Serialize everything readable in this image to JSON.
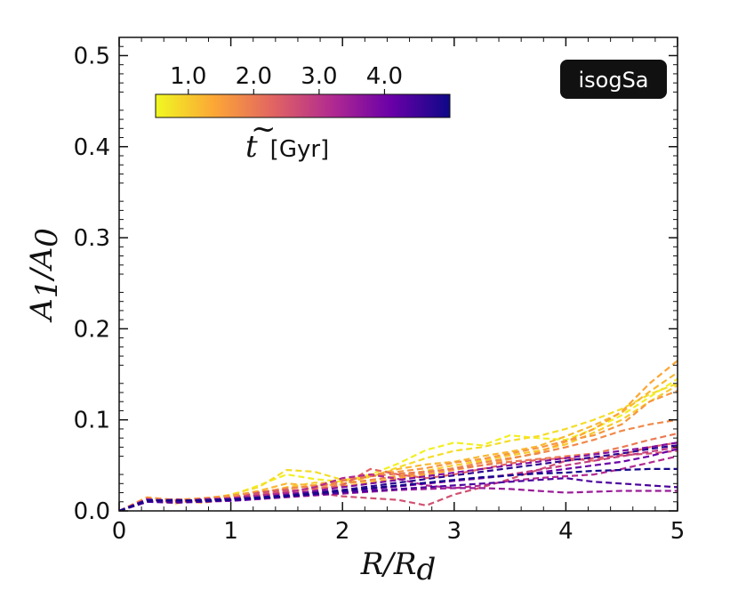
{
  "chart_data": {
    "type": "line",
    "line_style": "dashed",
    "badge": "isogSa",
    "xlabel": "R/R",
    "xlabel_sub": "d",
    "ylabel": "A",
    "ylabel_sub1": "1",
    "ylabel_sep": "/A",
    "ylabel_sub2": "0",
    "xlim": [
      0,
      5
    ],
    "ylim": [
      0,
      0.52
    ],
    "xticks": [
      0,
      1,
      2,
      3,
      4,
      5
    ],
    "xtick_labels": [
      "0",
      "1",
      "2",
      "3",
      "4",
      "5"
    ],
    "yticks": [
      0.0,
      0.1,
      0.2,
      0.3,
      0.4,
      0.5
    ],
    "ytick_labels": [
      "0.0",
      "0.1",
      "0.2",
      "0.3",
      "0.4",
      "0.5"
    ],
    "colorbar": {
      "label_sym": "t",
      "label_unit": "[Gyr]",
      "range": [
        0.5,
        5.0
      ],
      "ticks": [
        1.0,
        2.0,
        3.0,
        4.0
      ],
      "tick_labels": [
        "1.0",
        "2.0",
        "3.0",
        "4.0"
      ],
      "cmap_stops": [
        "#f0f921",
        "#fca636",
        "#e16462",
        "#b12a90",
        "#6a00a8",
        "#0d0887"
      ]
    },
    "x": [
      0,
      0.25,
      0.5,
      0.75,
      1,
      1.25,
      1.5,
      1.75,
      2,
      2.25,
      2.5,
      2.75,
      3,
      3.25,
      3.5,
      3.75,
      4,
      4.25,
      4.5,
      4.75,
      5
    ],
    "series": [
      {
        "t": 0.6,
        "values": [
          0.0,
          0.012,
          0.009,
          0.011,
          0.017,
          0.028,
          0.04,
          0.035,
          0.032,
          0.04,
          0.052,
          0.067,
          0.075,
          0.072,
          0.083,
          0.08,
          0.078,
          0.09,
          0.105,
          0.125,
          0.145
        ]
      },
      {
        "t": 0.8,
        "values": [
          0.0,
          0.014,
          0.01,
          0.012,
          0.018,
          0.026,
          0.045,
          0.043,
          0.034,
          0.037,
          0.048,
          0.058,
          0.066,
          0.07,
          0.077,
          0.082,
          0.09,
          0.1,
          0.112,
          0.128,
          0.14
        ]
      },
      {
        "t": 1.0,
        "values": [
          0.0,
          0.011,
          0.012,
          0.01,
          0.014,
          0.019,
          0.026,
          0.031,
          0.03,
          0.033,
          0.039,
          0.044,
          0.05,
          0.055,
          0.061,
          0.066,
          0.073,
          0.086,
          0.1,
          0.12,
          0.138
        ]
      },
      {
        "t": 1.2,
        "values": [
          0.0,
          0.013,
          0.008,
          0.013,
          0.016,
          0.022,
          0.03,
          0.028,
          0.029,
          0.038,
          0.046,
          0.051,
          0.054,
          0.06,
          0.065,
          0.071,
          0.082,
          0.094,
          0.108,
          0.131,
          0.152
        ]
      },
      {
        "t": 1.4,
        "values": [
          0.0,
          0.01,
          0.011,
          0.009,
          0.013,
          0.017,
          0.021,
          0.025,
          0.027,
          0.031,
          0.036,
          0.04,
          0.045,
          0.05,
          0.057,
          0.064,
          0.076,
          0.09,
          0.109,
          0.14,
          0.165
        ]
      },
      {
        "t": 1.6,
        "values": [
          0.0,
          0.015,
          0.012,
          0.014,
          0.017,
          0.021,
          0.024,
          0.028,
          0.035,
          0.04,
          0.043,
          0.047,
          0.053,
          0.057,
          0.063,
          0.069,
          0.077,
          0.083,
          0.095,
          0.12,
          0.132
        ]
      },
      {
        "t": 1.8,
        "values": [
          0.0,
          0.012,
          0.009,
          0.012,
          0.015,
          0.02,
          0.025,
          0.027,
          0.03,
          0.034,
          0.038,
          0.042,
          0.047,
          0.053,
          0.058,
          0.063,
          0.07,
          0.078,
          0.088,
          0.095,
          0.1
        ]
      },
      {
        "t": 2.0,
        "values": [
          0.0,
          0.01,
          0.013,
          0.011,
          0.012,
          0.016,
          0.02,
          0.026,
          0.033,
          0.038,
          0.041,
          0.043,
          0.046,
          0.05,
          0.054,
          0.057,
          0.06,
          0.063,
          0.07,
          0.078,
          0.085
        ]
      },
      {
        "t": 2.3,
        "values": [
          0.0,
          0.013,
          0.01,
          0.012,
          0.014,
          0.018,
          0.022,
          0.024,
          0.028,
          0.046,
          0.04,
          0.036,
          0.04,
          0.046,
          0.052,
          0.056,
          0.058,
          0.055,
          0.062,
          0.07,
          0.075
        ]
      },
      {
        "t": 2.6,
        "values": [
          0.0,
          0.011,
          0.012,
          0.01,
          0.013,
          0.02,
          0.023,
          0.02,
          0.016,
          0.014,
          0.012,
          0.006,
          0.018,
          0.026,
          0.035,
          0.045,
          0.055,
          0.058,
          0.061,
          0.063,
          0.066
        ]
      },
      {
        "t": 2.9,
        "values": [
          0.0,
          0.012,
          0.011,
          0.011,
          0.013,
          0.016,
          0.019,
          0.021,
          0.022,
          0.024,
          0.027,
          0.03,
          0.033,
          0.036,
          0.04,
          0.045,
          0.05,
          0.055,
          0.06,
          0.065,
          0.07
        ]
      },
      {
        "t": 3.2,
        "values": [
          0.0,
          0.013,
          0.01,
          0.013,
          0.014,
          0.017,
          0.02,
          0.026,
          0.036,
          0.04,
          0.035,
          0.028,
          0.025,
          0.028,
          0.033,
          0.036,
          0.038,
          0.04,
          0.046,
          0.053,
          0.06
        ]
      },
      {
        "t": 3.5,
        "values": [
          0.0,
          0.01,
          0.011,
          0.01,
          0.011,
          0.013,
          0.015,
          0.017,
          0.019,
          0.021,
          0.023,
          0.024,
          0.025,
          0.025,
          0.024,
          0.022,
          0.02,
          0.021,
          0.022,
          0.022,
          0.022
        ]
      },
      {
        "t": 3.8,
        "values": [
          0.0,
          0.012,
          0.012,
          0.011,
          0.012,
          0.015,
          0.018,
          0.022,
          0.026,
          0.03,
          0.034,
          0.038,
          0.042,
          0.046,
          0.05,
          0.054,
          0.058,
          0.062,
          0.066,
          0.07,
          0.075
        ]
      },
      {
        "t": 4.1,
        "values": [
          0.0,
          0.011,
          0.01,
          0.012,
          0.011,
          0.013,
          0.016,
          0.018,
          0.021,
          0.024,
          0.027,
          0.03,
          0.033,
          0.036,
          0.039,
          0.042,
          0.046,
          0.05,
          0.054,
          0.06,
          0.068
        ]
      },
      {
        "t": 4.4,
        "values": [
          0.0,
          0.01,
          0.009,
          0.01,
          0.012,
          0.014,
          0.016,
          0.018,
          0.02,
          0.022,
          0.024,
          0.026,
          0.028,
          0.03,
          0.032,
          0.034,
          0.036,
          0.032,
          0.03,
          0.028,
          0.026
        ]
      },
      {
        "t": 4.7,
        "values": [
          0.0,
          0.012,
          0.011,
          0.012,
          0.013,
          0.015,
          0.017,
          0.02,
          0.023,
          0.027,
          0.031,
          0.035,
          0.039,
          0.043,
          0.047,
          0.051,
          0.055,
          0.059,
          0.063,
          0.068,
          0.072
        ]
      },
      {
        "t": 4.9,
        "values": [
          0.0,
          0.011,
          0.012,
          0.011,
          0.012,
          0.014,
          0.016,
          0.019,
          0.022,
          0.025,
          0.028,
          0.031,
          0.034,
          0.037,
          0.039,
          0.041,
          0.042,
          0.044,
          0.045,
          0.046,
          0.046
        ]
      }
    ]
  }
}
